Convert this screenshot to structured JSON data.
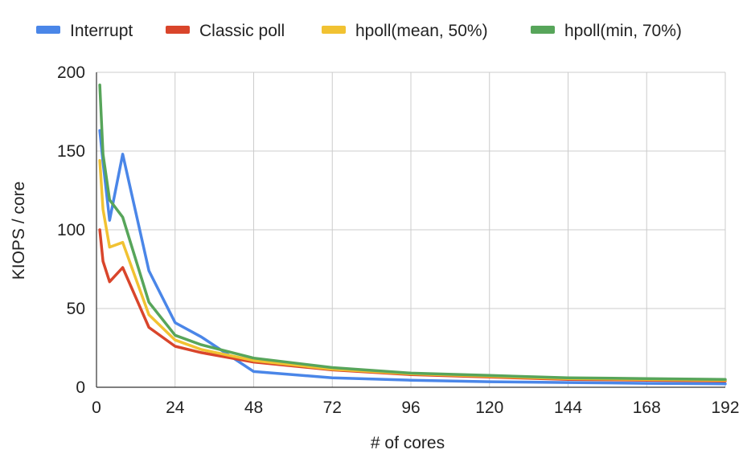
{
  "chart_data": {
    "type": "line",
    "title": "",
    "xlabel": "# of cores",
    "ylabel": "KIOPS / core",
    "xlim": [
      0,
      192
    ],
    "ylim": [
      0,
      200
    ],
    "xticks": [
      0,
      24,
      48,
      72,
      96,
      120,
      144,
      168,
      192
    ],
    "yticks": [
      0,
      50,
      100,
      150,
      200
    ],
    "grid": true,
    "legend_position": "top",
    "series": [
      {
        "name": "Interrupt",
        "color": "#4a86e8",
        "x": [
          1,
          2,
          4,
          8,
          16,
          24,
          32,
          48,
          72,
          96,
          120,
          144,
          168,
          192
        ],
        "y": [
          163,
          143,
          106,
          148,
          74,
          41,
          32,
          10,
          6,
          4.5,
          3.5,
          3,
          2.5,
          2.2
        ]
      },
      {
        "name": "Classic poll",
        "color": "#d9452b",
        "x": [
          1,
          2,
          4,
          8,
          16,
          24,
          32,
          48,
          72,
          96,
          120,
          144,
          168,
          192
        ],
        "y": [
          100,
          80,
          67,
          76,
          38,
          26,
          22,
          16,
          11,
          8,
          6.5,
          5,
          4.5,
          4
        ]
      },
      {
        "name": "hpoll(mean, 50%)",
        "color": "#f1c232",
        "x": [
          1,
          2,
          4,
          8,
          16,
          24,
          32,
          48,
          72,
          96,
          120,
          144,
          168,
          192
        ],
        "y": [
          144,
          113,
          89,
          92,
          46,
          30,
          24,
          17,
          11.5,
          8.5,
          7,
          5.5,
          5,
          4.5
        ]
      },
      {
        "name": "hpoll(min, 70%)",
        "color": "#57a55a",
        "x": [
          1,
          2,
          4,
          8,
          16,
          24,
          32,
          48,
          72,
          96,
          120,
          144,
          168,
          192
        ],
        "y": [
          192,
          148,
          119,
          108,
          54,
          33,
          27,
          18.5,
          12.5,
          9,
          7.5,
          6,
          5.5,
          5
        ]
      }
    ]
  }
}
